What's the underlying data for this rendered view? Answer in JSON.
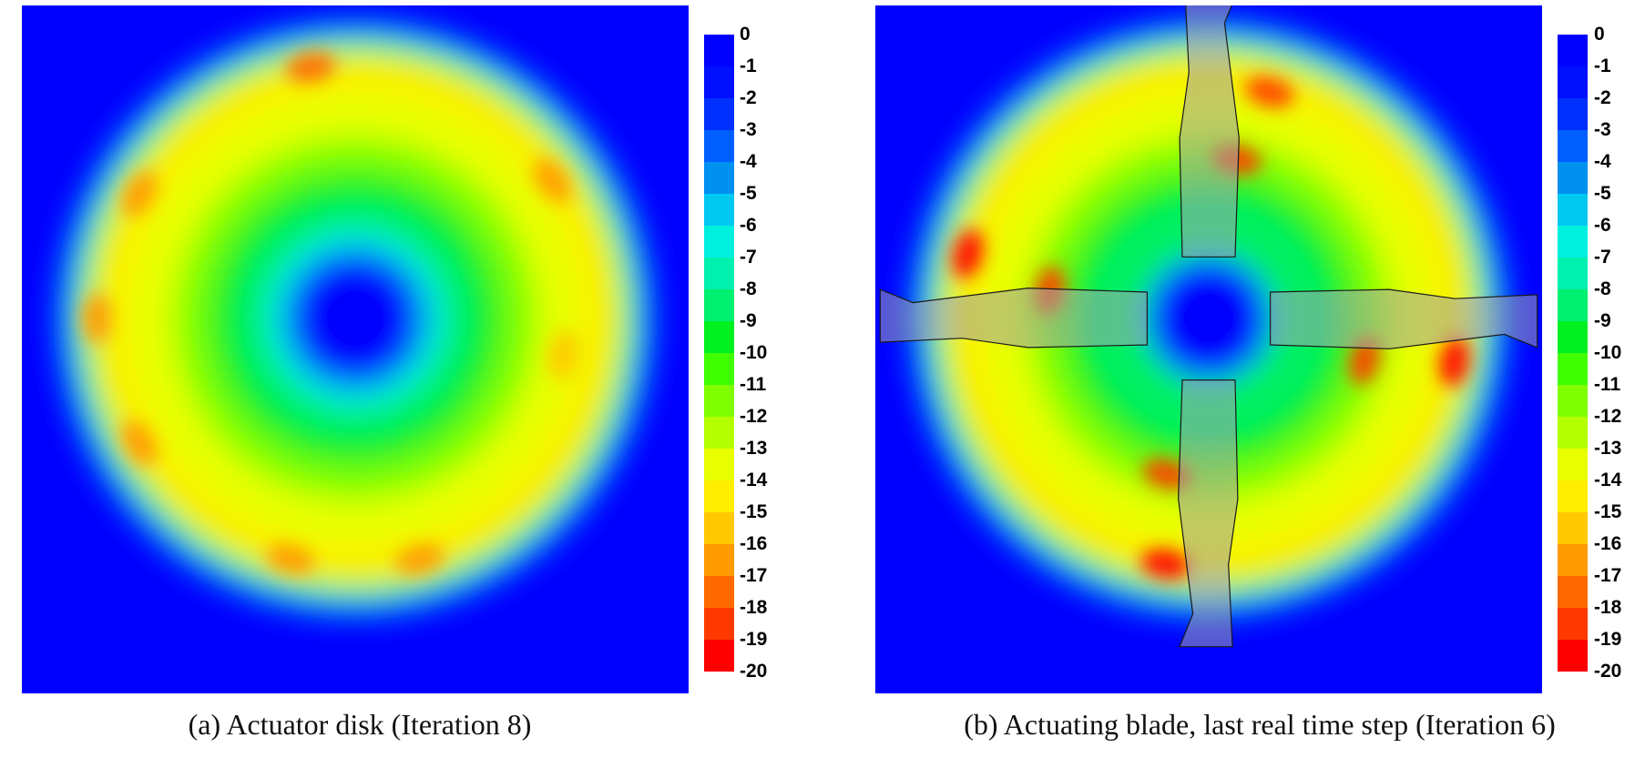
{
  "colors": {
    "scale": [
      "#ff0000",
      "#ff3a00",
      "#ff6a00",
      "#ff9a00",
      "#ffc800",
      "#ffee00",
      "#e8ff00",
      "#b4ff00",
      "#80ff00",
      "#40ff00",
      "#00f020",
      "#00f070",
      "#00f0b0",
      "#00f0e0",
      "#00c8f0",
      "#0090f0",
      "#0060ff",
      "#0030ff",
      "#0010ff",
      "#0000ff",
      "#0000ff"
    ],
    "background": "#0000ff"
  },
  "chart_data": [
    {
      "type": "heatmap",
      "panel": "a",
      "caption": "(a) Actuator disk (Iteration 8)",
      "colorbar": {
        "ticks": [
          "0",
          "-1",
          "-2",
          "-3",
          "-4",
          "-5",
          "-6",
          "-7",
          "-8",
          "-9",
          "-10",
          "-11",
          "-12",
          "-13",
          "-14",
          "-15",
          "-16",
          "-17",
          "-18",
          "-19",
          "-20"
        ],
        "range": [
          -20,
          0
        ]
      },
      "field": {
        "shape": "annulus",
        "inner_value": -5,
        "bulk_value": -14,
        "rim_value": -6,
        "hot_spots": [
          {
            "angle_deg": 100,
            "r_frac": 0.87,
            "value": -18
          },
          {
            "angle_deg": 150,
            "r_frac": 0.85,
            "value": -17
          },
          {
            "angle_deg": 180,
            "r_frac": 0.88,
            "value": -17
          },
          {
            "angle_deg": 210,
            "r_frac": 0.85,
            "value": -17
          },
          {
            "angle_deg": 255,
            "r_frac": 0.85,
            "value": -17
          },
          {
            "angle_deg": 285,
            "r_frac": 0.85,
            "value": -17
          },
          {
            "angle_deg": 35,
            "r_frac": 0.82,
            "value": -17
          },
          {
            "angle_deg": 350,
            "r_frac": 0.72,
            "value": -16
          }
        ]
      },
      "blades": []
    },
    {
      "type": "heatmap",
      "panel": "b",
      "caption": "(b) Actuating blade, last real time step (Iteration 6)",
      "colorbar": {
        "ticks": [
          "0",
          "-1",
          "-2",
          "-3",
          "-4",
          "-5",
          "-6",
          "-7",
          "-8",
          "-9",
          "-10",
          "-11",
          "-12",
          "-13",
          "-14",
          "-15",
          "-16",
          "-17",
          "-18",
          "-19",
          "-20"
        ],
        "range": [
          -20,
          0
        ]
      },
      "field": {
        "shape": "annulus",
        "inner_value": -8,
        "bulk_value": -14,
        "rim_value": -6,
        "hot_spots": [
          {
            "angle_deg": 75,
            "r_frac": 0.8,
            "value": -19
          },
          {
            "angle_deg": 80,
            "r_frac": 0.55,
            "value": -19
          },
          {
            "angle_deg": 165,
            "r_frac": 0.85,
            "value": -20
          },
          {
            "angle_deg": 170,
            "r_frac": 0.55,
            "value": -19
          },
          {
            "angle_deg": 260,
            "r_frac": 0.85,
            "value": -20
          },
          {
            "angle_deg": 255,
            "r_frac": 0.55,
            "value": -19
          },
          {
            "angle_deg": 350,
            "r_frac": 0.85,
            "value": -20
          },
          {
            "angle_deg": 345,
            "r_frac": 0.55,
            "value": -19
          }
        ]
      },
      "blades": [
        {
          "direction": "up"
        },
        {
          "direction": "left"
        },
        {
          "direction": "right"
        },
        {
          "direction": "down"
        }
      ]
    }
  ]
}
